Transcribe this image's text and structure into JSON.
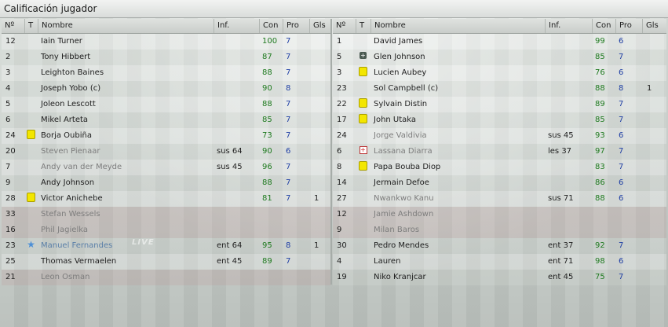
{
  "window": {
    "title": "Calificación jugador"
  },
  "headers": [
    "Nº",
    "T",
    "Nombre",
    "Inf.",
    "Con",
    "Pro",
    "Gls"
  ],
  "home": [
    {
      "num": "12",
      "icon": "",
      "name": "Iain Turner",
      "inf": "",
      "con": "100",
      "pro": "7",
      "gls": "",
      "sub": false
    },
    {
      "num": "2",
      "icon": "",
      "name": "Tony Hibbert",
      "inf": "",
      "con": "87",
      "pro": "7",
      "gls": "",
      "sub": false
    },
    {
      "num": "3",
      "icon": "",
      "name": "Leighton Baines",
      "inf": "",
      "con": "88",
      "pro": "7",
      "gls": "",
      "sub": false
    },
    {
      "num": "4",
      "icon": "",
      "name": "Joseph Yobo (c)",
      "inf": "",
      "con": "90",
      "pro": "8",
      "gls": "",
      "sub": false
    },
    {
      "num": "5",
      "icon": "",
      "name": "Joleon Lescott",
      "inf": "",
      "con": "88",
      "pro": "7",
      "gls": "",
      "sub": false
    },
    {
      "num": "6",
      "icon": "",
      "name": "Mikel Arteta",
      "inf": "",
      "con": "85",
      "pro": "7",
      "gls": "",
      "sub": false
    },
    {
      "num": "24",
      "icon": "yellow-card-icon",
      "name": "Borja Oubiña",
      "inf": "",
      "con": "73",
      "pro": "7",
      "gls": "",
      "sub": false
    },
    {
      "num": "20",
      "icon": "",
      "name": "Steven Pienaar",
      "inf": "sus 64",
      "con": "90",
      "pro": "6",
      "gls": "",
      "sub": true
    },
    {
      "num": "7",
      "icon": "",
      "name": "Andy van der Meyde",
      "inf": "sus 45",
      "con": "96",
      "pro": "7",
      "gls": "",
      "sub": true
    },
    {
      "num": "9",
      "icon": "",
      "name": "Andy Johnson",
      "inf": "",
      "con": "88",
      "pro": "7",
      "gls": "",
      "sub": false
    },
    {
      "num": "28",
      "icon": "yellow-card-icon",
      "name": "Victor Anichebe",
      "inf": "",
      "con": "81",
      "pro": "7",
      "gls": "1",
      "sub": false
    },
    {
      "num": "33",
      "icon": "",
      "name": "Stefan Wessels",
      "inf": "",
      "con": "",
      "pro": "",
      "gls": "",
      "sub": true,
      "absent": true
    },
    {
      "num": "16",
      "icon": "",
      "name": "Phil Jagielka",
      "inf": "",
      "con": "",
      "pro": "",
      "gls": "",
      "sub": true,
      "absent": true
    },
    {
      "num": "23",
      "icon": "star-icon",
      "name": "Manuel Fernandes",
      "inf": "ent 64",
      "con": "95",
      "pro": "8",
      "gls": "1",
      "sub": false,
      "starred": true
    },
    {
      "num": "25",
      "icon": "",
      "name": "Thomas Vermaelen",
      "inf": "ent 45",
      "con": "89",
      "pro": "7",
      "gls": "",
      "sub": false
    },
    {
      "num": "21",
      "icon": "",
      "name": "Leon Osman",
      "inf": "",
      "con": "",
      "pro": "",
      "gls": "",
      "sub": true,
      "absent": true
    }
  ],
  "away": [
    {
      "num": "1",
      "icon": "",
      "name": "David James",
      "inf": "",
      "con": "99",
      "pro": "6",
      "gls": "",
      "sub": false
    },
    {
      "num": "5",
      "icon": "plus-icon",
      "name": "Glen Johnson",
      "inf": "",
      "con": "85",
      "pro": "7",
      "gls": "",
      "sub": false
    },
    {
      "num": "3",
      "icon": "yellow-card-icon",
      "name": "Lucien Aubey",
      "inf": "",
      "con": "76",
      "pro": "6",
      "gls": "",
      "sub": false
    },
    {
      "num": "23",
      "icon": "",
      "name": "Sol Campbell (c)",
      "inf": "",
      "con": "88",
      "pro": "8",
      "gls": "1",
      "sub": false
    },
    {
      "num": "22",
      "icon": "yellow-card-icon",
      "name": "Sylvain Distin",
      "inf": "",
      "con": "89",
      "pro": "7",
      "gls": "",
      "sub": false
    },
    {
      "num": "17",
      "icon": "yellow-card-icon",
      "name": "John Utaka",
      "inf": "",
      "con": "85",
      "pro": "7",
      "gls": "",
      "sub": false
    },
    {
      "num": "24",
      "icon": "",
      "name": "Jorge Valdivia",
      "inf": "sus 45",
      "con": "93",
      "pro": "6",
      "gls": "",
      "sub": true
    },
    {
      "num": "6",
      "icon": "injury-icon",
      "name": "Lassana Diarra",
      "inf": "les 37",
      "con": "97",
      "pro": "7",
      "gls": "",
      "sub": true
    },
    {
      "num": "8",
      "icon": "yellow-card-icon",
      "name": "Papa Bouba Diop",
      "inf": "",
      "con": "83",
      "pro": "7",
      "gls": "",
      "sub": false
    },
    {
      "num": "14",
      "icon": "",
      "name": "Jermain Defoe",
      "inf": "",
      "con": "86",
      "pro": "6",
      "gls": "",
      "sub": false
    },
    {
      "num": "27",
      "icon": "",
      "name": "Nwankwo Kanu",
      "inf": "sus 71",
      "con": "88",
      "pro": "6",
      "gls": "",
      "sub": true
    },
    {
      "num": "12",
      "icon": "",
      "name": "Jamie Ashdown",
      "inf": "",
      "con": "",
      "pro": "",
      "gls": "",
      "sub": true,
      "absent": true
    },
    {
      "num": "9",
      "icon": "",
      "name": "Milan Baros",
      "inf": "",
      "con": "",
      "pro": "",
      "gls": "",
      "sub": true,
      "absent": true
    },
    {
      "num": "30",
      "icon": "",
      "name": "Pedro Mendes",
      "inf": "ent 37",
      "con": "92",
      "pro": "7",
      "gls": "",
      "sub": false
    },
    {
      "num": "4",
      "icon": "",
      "name": "Lauren",
      "inf": "ent 71",
      "con": "98",
      "pro": "6",
      "gls": "",
      "sub": false
    },
    {
      "num": "19",
      "icon": "",
      "name": "Niko Kranjcar",
      "inf": "ent 45",
      "con": "75",
      "pro": "7",
      "gls": "",
      "sub": false
    }
  ],
  "watermark": "LIVE",
  "colors": {
    "good": "#1f7a1f",
    "rating": "#1f3fa5",
    "yellow_card": "#f3e600"
  }
}
